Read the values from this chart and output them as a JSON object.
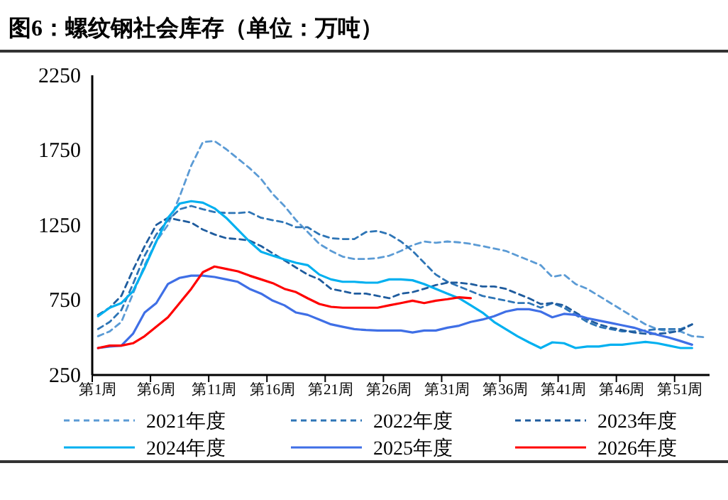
{
  "chart_data": {
    "type": "line",
    "title": "图6：螺纹钢社会库存（单位：万吨）",
    "categories": [
      "第1周",
      null,
      null,
      null,
      null,
      "第6周",
      null,
      null,
      null,
      null,
      "第11周",
      null,
      null,
      null,
      null,
      "第16周",
      null,
      null,
      null,
      null,
      "第21周",
      null,
      null,
      null,
      null,
      "第26周",
      null,
      null,
      null,
      null,
      "第31周",
      null,
      null,
      null,
      null,
      "第36周",
      null,
      null,
      null,
      null,
      "第41周",
      null,
      null,
      null,
      null,
      "第46周",
      null,
      null,
      null,
      null,
      "第51周",
      null,
      null
    ],
    "ylim": [
      250,
      2250
    ],
    "yticks": [
      250,
      750,
      1250,
      1750,
      2250
    ],
    "grid": false,
    "legend": "bottom",
    "marker": "none",
    "series": [
      {
        "name": "2021年度",
        "color": "#5b9bd5",
        "line_style": "dashed",
        "values": [
          509,
          541,
          604,
          793,
          983,
          1141,
          1252,
          1441,
          1647,
          1805,
          1811,
          1757,
          1694,
          1631,
          1558,
          1457,
          1378,
          1283,
          1204,
          1125,
          1078,
          1040,
          1024,
          1024,
          1030,
          1046,
          1078,
          1116,
          1141,
          1132,
          1141,
          1135,
          1125,
          1110,
          1094,
          1078,
          1046,
          1015,
          983,
          904,
          920,
          857,
          825,
          778,
          730,
          683,
          635,
          588,
          556,
          541,
          541,
          509,
          503
        ]
      },
      {
        "name": "2022年度",
        "color": "#2e75b6",
        "line_style": "dashed",
        "values": [
          557,
          604,
          683,
          857,
          1046,
          1188,
          1283,
          1356,
          1378,
          1356,
          1337,
          1331,
          1331,
          1337,
          1299,
          1283,
          1268,
          1236,
          1236,
          1188,
          1163,
          1157,
          1157,
          1204,
          1211,
          1188,
          1141,
          1078,
          999,
          920,
          872,
          841,
          809,
          778,
          762,
          746,
          730,
          730,
          699,
          730,
          699,
          651,
          604,
          572,
          556,
          541,
          541,
          547,
          556,
          556,
          556,
          588,
          null
        ]
      },
      {
        "name": "2023年度",
        "color": "#1f5c9e",
        "line_style": "dashed",
        "values": [
          651,
          699,
          778,
          951,
          1110,
          1252,
          1299,
          1283,
          1267,
          1220,
          1188,
          1163,
          1157,
          1147,
          1110,
          1062,
          1015,
          967,
          920,
          888,
          825,
          809,
          793,
          793,
          778,
          762,
          793,
          803,
          825,
          850,
          866,
          866,
          857,
          841,
          841,
          825,
          793,
          762,
          724,
          730,
          715,
          667,
          620,
          588,
          566,
          550,
          534,
          525,
          525,
          531,
          547,
          588,
          null
        ]
      },
      {
        "name": "2024年度",
        "color": "#00b0f0",
        "line_style": "solid",
        "values": [
          642,
          699,
          730,
          809,
          967,
          1141,
          1299,
          1394,
          1410,
          1400,
          1362,
          1299,
          1220,
          1141,
          1072,
          1046,
          1021,
          999,
          983,
          920,
          888,
          872,
          872,
          866,
          866,
          888,
          888,
          882,
          857,
          825,
          793,
          762,
          715,
          667,
          604,
          556,
          509,
          468,
          430,
          468,
          462,
          430,
          440,
          440,
          452,
          452,
          462,
          471,
          462,
          446,
          430,
          430,
          null
        ]
      },
      {
        "name": "2025年度",
        "color": "#3f6fe6",
        "line_style": "solid",
        "values": [
          430,
          440,
          446,
          525,
          667,
          730,
          857,
          898,
          913,
          913,
          904,
          888,
          872,
          825,
          793,
          746,
          715,
          667,
          651,
          620,
          588,
          572,
          556,
          550,
          547,
          547,
          547,
          534,
          547,
          547,
          566,
          579,
          604,
          620,
          642,
          673,
          689,
          689,
          673,
          635,
          658,
          651,
          629,
          613,
          598,
          582,
          566,
          541,
          519,
          500,
          477,
          452,
          null
        ]
      },
      {
        "name": "2026年度",
        "color": "#ff0000",
        "line_style": "solid",
        "values": [
          430,
          446,
          446,
          462,
          509,
          572,
          635,
          730,
          825,
          936,
          974,
          958,
          942,
          913,
          888,
          863,
          825,
          803,
          762,
          724,
          705,
          699,
          699,
          699,
          699,
          715,
          730,
          746,
          730,
          746,
          756,
          768,
          762,
          null,
          null,
          null,
          null,
          null,
          null,
          null,
          null,
          null,
          null,
          null,
          null,
          null,
          null,
          null,
          null,
          null,
          null,
          null,
          null
        ]
      }
    ]
  }
}
